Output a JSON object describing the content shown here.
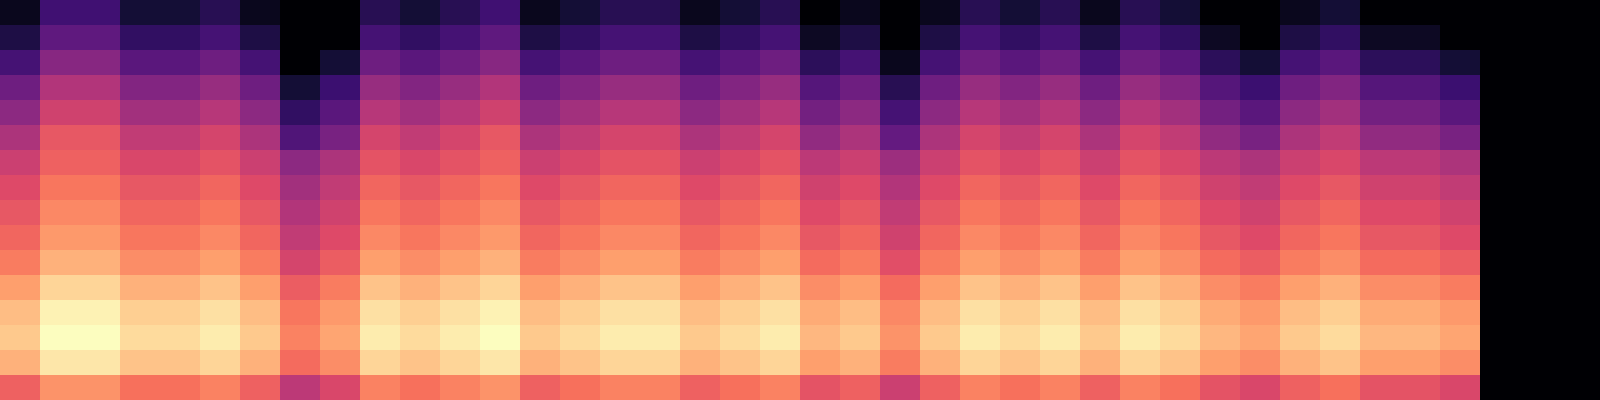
{
  "chart_data": {
    "type": "heatmap",
    "tick_labels": false,
    "zlim": [
      -80,
      0
    ],
    "cells": [
      [
        -76,
        -63,
        -63,
        -72,
        -72,
        -68,
        -76,
        -80,
        -80,
        -68,
        -72,
        -68,
        -63,
        -76,
        -72,
        -68,
        -68,
        -76,
        -72,
        -68,
        -80,
        -76,
        -80,
        -76,
        -68,
        -72,
        -68,
        -76,
        -68,
        -72,
        -80,
        -80,
        -76,
        -72,
        -80,
        -80,
        -80,
        -80,
        -80,
        -80
      ],
      [
        -70,
        -57,
        -57,
        -66,
        -66,
        -62,
        -70,
        -80,
        -80,
        -62,
        -66,
        -62,
        -57,
        -70,
        -66,
        -62,
        -62,
        -70,
        -66,
        -62,
        -75,
        -70,
        -80,
        -70,
        -62,
        -66,
        -62,
        -70,
        -62,
        -66,
        -75,
        -80,
        -70,
        -66,
        -75,
        -75,
        -80,
        -80,
        -80,
        -80
      ],
      [
        -62,
        -49,
        -49,
        -58,
        -58,
        -54,
        -62,
        -80,
        -72,
        -54,
        -58,
        -54,
        -49,
        -62,
        -58,
        -54,
        -54,
        -62,
        -58,
        -54,
        -67,
        -62,
        -76,
        -62,
        -54,
        -58,
        -54,
        -62,
        -54,
        -58,
        -67,
        -72,
        -62,
        -58,
        -67,
        -67,
        -72,
        -80,
        -80,
        -80
      ],
      [
        -54,
        -41,
        -41,
        -50,
        -50,
        -46,
        -54,
        -72,
        -64,
        -46,
        -50,
        -46,
        -41,
        -54,
        -50,
        -46,
        -46,
        -54,
        -50,
        -46,
        -59,
        -54,
        -68,
        -54,
        -46,
        -50,
        -46,
        -54,
        -46,
        -50,
        -59,
        -64,
        -54,
        -50,
        -59,
        -59,
        -64,
        -80,
        -80,
        -80
      ],
      [
        -48,
        -35,
        -35,
        -44,
        -44,
        -40,
        -48,
        -66,
        -58,
        -40,
        -44,
        -40,
        -35,
        -48,
        -44,
        -40,
        -40,
        -48,
        -44,
        -40,
        -53,
        -48,
        -62,
        -48,
        -40,
        -44,
        -40,
        -48,
        -40,
        -44,
        -53,
        -58,
        -48,
        -44,
        -53,
        -53,
        -58,
        -80,
        -80,
        -80
      ],
      [
        -42,
        -29,
        -29,
        -38,
        -38,
        -34,
        -42,
        -60,
        -52,
        -34,
        -38,
        -34,
        -29,
        -42,
        -38,
        -34,
        -34,
        -42,
        -38,
        -34,
        -47,
        -42,
        -56,
        -42,
        -34,
        -38,
        -34,
        -42,
        -34,
        -38,
        -47,
        -52,
        -42,
        -38,
        -47,
        -47,
        -52,
        -80,
        -80,
        -80
      ],
      [
        -36,
        -27,
        -27,
        -33,
        -33,
        -30,
        -36,
        -48,
        -42,
        -30,
        -33,
        -30,
        -27,
        -36,
        -33,
        -30,
        -30,
        -36,
        -33,
        -30,
        -39,
        -36,
        -45,
        -36,
        -30,
        -33,
        -30,
        -36,
        -30,
        -33,
        -39,
        -42,
        -36,
        -33,
        -39,
        -39,
        -42,
        -80,
        -80,
        -80
      ],
      [
        -32,
        -23,
        -23,
        -29,
        -29,
        -26,
        -32,
        -44,
        -38,
        -26,
        -29,
        -26,
        -23,
        -32,
        -29,
        -26,
        -26,
        -32,
        -29,
        -26,
        -35,
        -32,
        -41,
        -32,
        -26,
        -29,
        -26,
        -32,
        -26,
        -29,
        -35,
        -38,
        -32,
        -29,
        -35,
        -35,
        -38,
        -80,
        -80,
        -80
      ],
      [
        -29,
        -20,
        -20,
        -26,
        -26,
        -23,
        -29,
        -41,
        -35,
        -23,
        -26,
        -23,
        -20,
        -29,
        -26,
        -23,
        -23,
        -29,
        -26,
        -23,
        -32,
        -29,
        -38,
        -29,
        -23,
        -26,
        -23,
        -29,
        -23,
        -26,
        -32,
        -35,
        -29,
        -26,
        -32,
        -32,
        -35,
        -80,
        -80,
        -80
      ],
      [
        -26,
        -17,
        -17,
        -23,
        -23,
        -20,
        -26,
        -38,
        -32,
        -20,
        -23,
        -20,
        -17,
        -26,
        -23,
        -20,
        -20,
        -26,
        -23,
        -20,
        -29,
        -26,
        -35,
        -26,
        -20,
        -23,
        -20,
        -26,
        -20,
        -23,
        -29,
        -32,
        -26,
        -23,
        -29,
        -29,
        -32,
        -80,
        -80,
        -80
      ],
      [
        -22,
        -13,
        -13,
        -19,
        -19,
        -16,
        -22,
        -34,
        -28,
        -16,
        -19,
        -16,
        -13,
        -22,
        -19,
        -16,
        -16,
        -22,
        -19,
        -16,
        -25,
        -22,
        -31,
        -22,
        -16,
        -19,
        -16,
        -22,
        -16,
        -19,
        -25,
        -28,
        -22,
        -19,
        -25,
        -25,
        -28,
        -80,
        -80,
        -80
      ],
      [
        -16,
        -7,
        -7,
        -13,
        -13,
        -10,
        -16,
        -28,
        -22,
        -10,
        -13,
        -10,
        -7,
        -16,
        -13,
        -10,
        -10,
        -16,
        -13,
        -10,
        -19,
        -16,
        -25,
        -16,
        -10,
        -13,
        -10,
        -16,
        -10,
        -13,
        -19,
        -22,
        -16,
        -13,
        -19,
        -19,
        -22,
        -80,
        -80,
        -80
      ],
      [
        -11,
        -2,
        -2,
        -8,
        -8,
        -5,
        -11,
        -23,
        -17,
        -5,
        -8,
        -5,
        -2,
        -11,
        -8,
        -5,
        -5,
        -11,
        -8,
        -5,
        -14,
        -11,
        -20,
        -11,
        -5,
        -8,
        -5,
        -11,
        -5,
        -8,
        -14,
        -17,
        -11,
        -8,
        -14,
        -14,
        -17,
        -80,
        -80,
        -80
      ],
      [
        -9,
        0,
        0,
        -6,
        -6,
        -3,
        -9,
        -21,
        -15,
        -3,
        -6,
        -3,
        0,
        -9,
        -6,
        -3,
        -3,
        -9,
        -6,
        -3,
        -12,
        -9,
        -18,
        -9,
        -3,
        -6,
        -3,
        -9,
        -3,
        -6,
        -12,
        -15,
        -9,
        -6,
        -12,
        -12,
        -15,
        -80,
        -80,
        -80
      ],
      [
        -13,
        -4,
        -4,
        -10,
        -10,
        -7,
        -13,
        -25,
        -19,
        -7,
        -10,
        -7,
        -4,
        -13,
        -10,
        -7,
        -7,
        -13,
        -10,
        -7,
        -16,
        -13,
        -22,
        -13,
        -7,
        -10,
        -7,
        -13,
        -7,
        -10,
        -16,
        -19,
        -13,
        -10,
        -16,
        -16,
        -19,
        -80,
        -80,
        -80
      ],
      [
        -27,
        -18,
        -18,
        -24,
        -24,
        -21,
        -27,
        -39,
        -33,
        -21,
        -24,
        -21,
        -18,
        -27,
        -24,
        -21,
        -21,
        -27,
        -24,
        -21,
        -30,
        -27,
        -36,
        -27,
        -21,
        -24,
        -21,
        -27,
        -21,
        -24,
        -30,
        -33,
        -27,
        -24,
        -30,
        -30,
        -33,
        -80,
        -80,
        -80
      ]
    ]
  }
}
